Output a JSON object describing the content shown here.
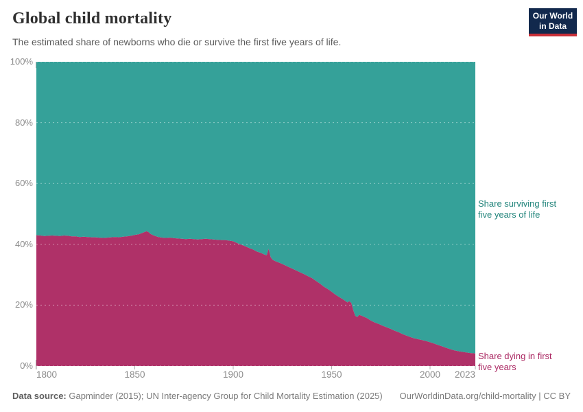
{
  "header": {
    "title": "Global child mortality",
    "subtitle": "The estimated share of newborns who die or survive the first five years of life."
  },
  "logo": {
    "line1": "Our World",
    "line2": "in Data",
    "bg_color": "#12294d",
    "stripe_color": "#c92f38"
  },
  "chart_data": {
    "type": "area",
    "stacked": true,
    "title": "Global child mortality",
    "xlabel": "",
    "ylabel": "",
    "xlim": [
      1800,
      2023
    ],
    "ylim": [
      0,
      100
    ],
    "grid": "horizontal dashed lines at every 20%",
    "legend_position": "labels at right edge of plot",
    "x_ticks": [
      1800,
      1850,
      1900,
      1950,
      2000,
      2023
    ],
    "y_ticks": [
      0,
      20,
      40,
      60,
      80,
      100
    ],
    "y_tick_suffix": "%",
    "axis_label_color": "#8c8c8c",
    "tick_color": "#adadad",
    "gridline_color_rgba": "rgba(255,255,255,0.45)",
    "series": [
      {
        "name": "Share dying in first five years",
        "color": "#af3168",
        "label_color": "#ab2963",
        "points": [
          [
            1800,
            43.0
          ],
          [
            1802,
            42.9
          ],
          [
            1804,
            42.7
          ],
          [
            1806,
            42.8
          ],
          [
            1808,
            42.9
          ],
          [
            1810,
            42.8
          ],
          [
            1812,
            42.7
          ],
          [
            1814,
            42.9
          ],
          [
            1816,
            42.8
          ],
          [
            1818,
            42.6
          ],
          [
            1820,
            42.6
          ],
          [
            1822,
            42.4
          ],
          [
            1824,
            42.5
          ],
          [
            1826,
            42.4
          ],
          [
            1828,
            42.3
          ],
          [
            1830,
            42.3
          ],
          [
            1832,
            42.2
          ],
          [
            1834,
            42.1
          ],
          [
            1836,
            42.2
          ],
          [
            1838,
            42.3
          ],
          [
            1840,
            42.4
          ],
          [
            1842,
            42.3
          ],
          [
            1844,
            42.5
          ],
          [
            1846,
            42.6
          ],
          [
            1848,
            42.8
          ],
          [
            1850,
            43.1
          ],
          [
            1852,
            43.3
          ],
          [
            1854,
            43.8
          ],
          [
            1856,
            44.3
          ],
          [
            1857,
            44.0
          ],
          [
            1858,
            43.4
          ],
          [
            1860,
            42.8
          ],
          [
            1862,
            42.4
          ],
          [
            1864,
            42.2
          ],
          [
            1866,
            42.1
          ],
          [
            1868,
            42.2
          ],
          [
            1870,
            42.0
          ],
          [
            1872,
            41.9
          ],
          [
            1874,
            41.8
          ],
          [
            1876,
            41.7
          ],
          [
            1878,
            41.8
          ],
          [
            1880,
            41.7
          ],
          [
            1882,
            41.6
          ],
          [
            1884,
            41.7
          ],
          [
            1886,
            41.8
          ],
          [
            1888,
            41.7
          ],
          [
            1890,
            41.6
          ],
          [
            1892,
            41.5
          ],
          [
            1894,
            41.4
          ],
          [
            1896,
            41.4
          ],
          [
            1898,
            41.2
          ],
          [
            1900,
            41.0
          ],
          [
            1902,
            40.4
          ],
          [
            1904,
            39.9
          ],
          [
            1906,
            39.4
          ],
          [
            1908,
            38.8
          ],
          [
            1910,
            38.3
          ],
          [
            1912,
            37.6
          ],
          [
            1914,
            37.2
          ],
          [
            1916,
            36.6
          ],
          [
            1917,
            36.4
          ],
          [
            1918,
            38.5
          ],
          [
            1919,
            35.8
          ],
          [
            1920,
            34.9
          ],
          [
            1922,
            34.3
          ],
          [
            1924,
            33.8
          ],
          [
            1926,
            33.2
          ],
          [
            1928,
            32.6
          ],
          [
            1930,
            32.0
          ],
          [
            1932,
            31.4
          ],
          [
            1934,
            30.8
          ],
          [
            1936,
            30.2
          ],
          [
            1938,
            29.5
          ],
          [
            1940,
            28.9
          ],
          [
            1942,
            28.0
          ],
          [
            1944,
            27.1
          ],
          [
            1946,
            26.1
          ],
          [
            1948,
            25.3
          ],
          [
            1950,
            24.4
          ],
          [
            1952,
            23.4
          ],
          [
            1954,
            22.6
          ],
          [
            1956,
            21.8
          ],
          [
            1958,
            20.9
          ],
          [
            1959,
            21.3
          ],
          [
            1960,
            20.7
          ],
          [
            1961,
            18.3
          ],
          [
            1962,
            16.5
          ],
          [
            1963,
            16.1
          ],
          [
            1964,
            16.8
          ],
          [
            1965,
            16.6
          ],
          [
            1966,
            16.3
          ],
          [
            1968,
            15.7
          ],
          [
            1970,
            14.9
          ],
          [
            1972,
            14.3
          ],
          [
            1974,
            13.8
          ],
          [
            1976,
            13.2
          ],
          [
            1978,
            12.7
          ],
          [
            1980,
            12.2
          ],
          [
            1982,
            11.6
          ],
          [
            1984,
            11.1
          ],
          [
            1986,
            10.5
          ],
          [
            1988,
            10.0
          ],
          [
            1990,
            9.5
          ],
          [
            1992,
            9.1
          ],
          [
            1994,
            8.8
          ],
          [
            1996,
            8.5
          ],
          [
            1998,
            8.2
          ],
          [
            2000,
            7.8
          ],
          [
            2002,
            7.4
          ],
          [
            2004,
            6.9
          ],
          [
            2006,
            6.5
          ],
          [
            2008,
            6.0
          ],
          [
            2010,
            5.6
          ],
          [
            2012,
            5.2
          ],
          [
            2014,
            4.9
          ],
          [
            2016,
            4.7
          ],
          [
            2018,
            4.5
          ],
          [
            2020,
            4.3
          ],
          [
            2023,
            4.1
          ]
        ]
      },
      {
        "name": "Share surviving first five years of life",
        "color": "#35a199",
        "label_color": "#23857c",
        "points_rule": "stacked remainder: 100 minus the dying share at every year"
      }
    ]
  },
  "annotations": {
    "surviving": {
      "line1": "Share surviving first",
      "line2": "five years of life"
    },
    "dying": {
      "line1": "Share dying in first",
      "line2": "five years"
    }
  },
  "footer": {
    "source_label": "Data source:",
    "source_text": "Gapminder (2015); UN Inter-agency Group for Child Mortality Estimation (2025)",
    "link_text": "OurWorldinData.org/child-mortality | CC BY"
  }
}
